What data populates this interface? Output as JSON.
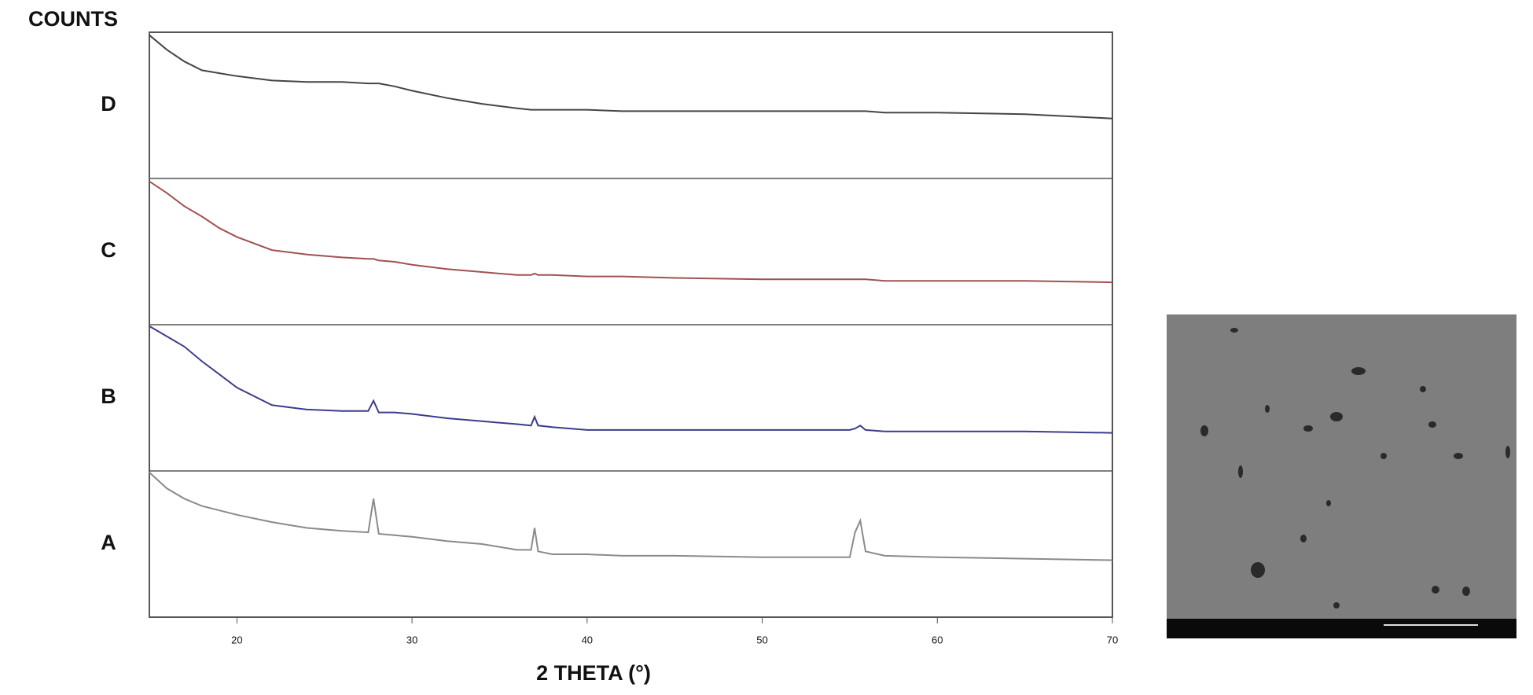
{
  "chart_data": {
    "type": "line",
    "y_title": "COUNTS",
    "x_title": "2 THETA (°)",
    "x": [
      15,
      16,
      17,
      18,
      19,
      20,
      22,
      24,
      26,
      27.5,
      27.8,
      28.1,
      29,
      30,
      32,
      34,
      36,
      36.8,
      37,
      37.2,
      38,
      40,
      42,
      45,
      50,
      55,
      55.3,
      55.6,
      55.9,
      57,
      60,
      65,
      70
    ],
    "xlim": [
      15,
      70
    ],
    "xticks": [
      20,
      30,
      40,
      50,
      60,
      70
    ],
    "ylim": [
      0,
      100
    ],
    "series": [
      {
        "name": "D",
        "color": "#454545",
        "values": [
          98,
          88,
          80,
          74,
          72,
          70,
          67,
          66,
          66,
          65,
          65,
          65,
          63,
          60,
          55,
          51,
          48,
          47,
          47,
          47,
          47,
          47,
          46,
          46,
          46,
          46,
          46,
          46,
          46,
          45,
          45,
          44,
          41
        ]
      },
      {
        "name": "C",
        "color": "#a0524f",
        "values": [
          98,
          90,
          81,
          74,
          66,
          60,
          51,
          48,
          46,
          45,
          45,
          44,
          43,
          41,
          38,
          36,
          34,
          34,
          35,
          34,
          34,
          33,
          33,
          32,
          31,
          31,
          31,
          31,
          31,
          30,
          30,
          30,
          29
        ]
      },
      {
        "name": "B",
        "color": "#3c3c8c",
        "values": [
          99,
          92,
          85,
          75,
          66,
          57,
          45,
          42,
          41,
          41,
          48,
          40,
          40,
          39,
          36,
          34,
          32,
          31,
          37,
          31,
          30,
          28,
          28,
          28,
          28,
          28,
          29,
          31,
          28,
          27,
          27,
          27,
          26
        ]
      },
      {
        "name": "A",
        "color": "#8a8a8a",
        "values": [
          99,
          88,
          81,
          76,
          73,
          70,
          65,
          61,
          59,
          58,
          81,
          57,
          56,
          55,
          52,
          50,
          46,
          46,
          61,
          45,
          43,
          43,
          42,
          42,
          41,
          41,
          58,
          66,
          45,
          42,
          41,
          40,
          39
        ]
      }
    ]
  }
}
